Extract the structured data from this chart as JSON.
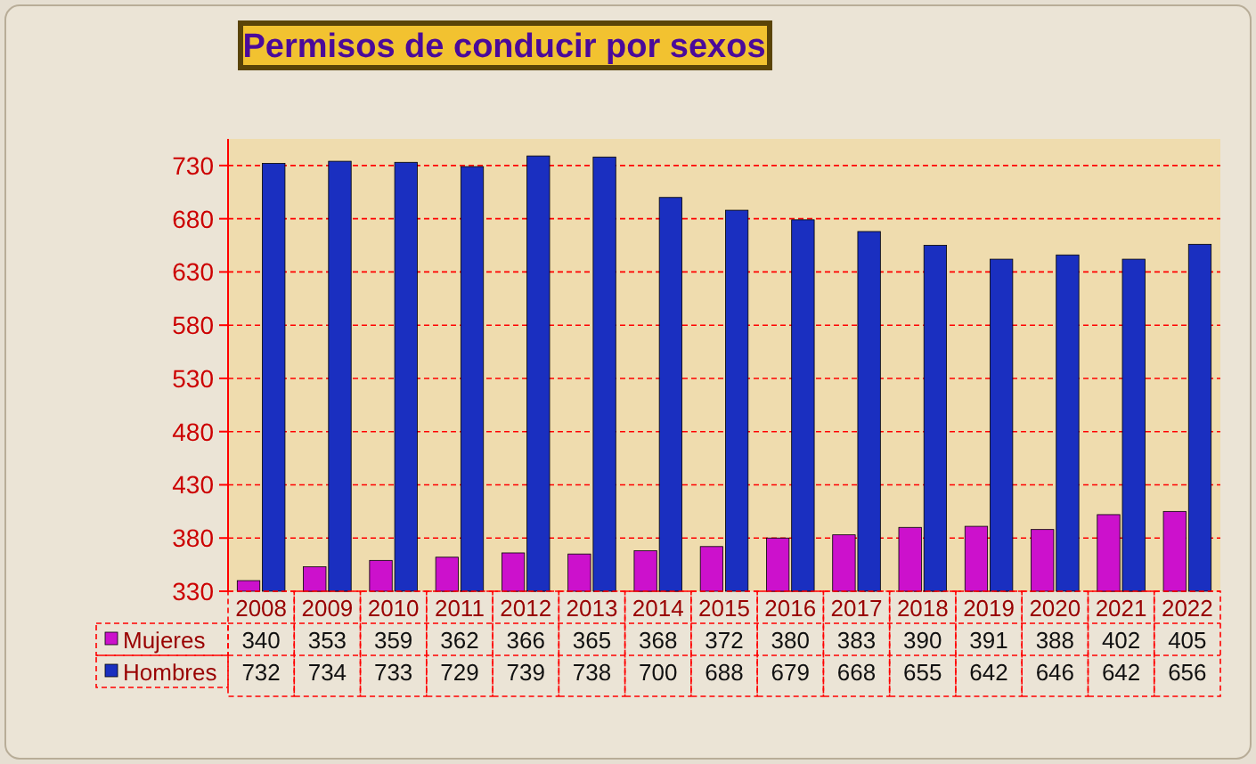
{
  "chart_data": {
    "type": "bar",
    "title": "Permisos de conducir por sexos",
    "categories": [
      "2008",
      "2009",
      "2010",
      "2011",
      "2012",
      "2013",
      "2014",
      "2015",
      "2016",
      "2017",
      "2018",
      "2019",
      "2020",
      "2021",
      "2022"
    ],
    "series": [
      {
        "name": "Mujeres",
        "color": "#cc11cc",
        "values": [
          340,
          353,
          359,
          362,
          366,
          365,
          368,
          372,
          380,
          383,
          390,
          391,
          388,
          402,
          405
        ]
      },
      {
        "name": "Hombres",
        "color": "#1a2fc0",
        "values": [
          732,
          734,
          733,
          729,
          739,
          738,
          700,
          688,
          679,
          668,
          655,
          642,
          646,
          642,
          656
        ]
      }
    ],
    "ylim": [
      330,
      755
    ],
    "yticks": [
      330,
      380,
      430,
      480,
      530,
      580,
      630,
      680,
      730
    ],
    "grid": "y",
    "legend": "bottom",
    "data_labels": true
  }
}
